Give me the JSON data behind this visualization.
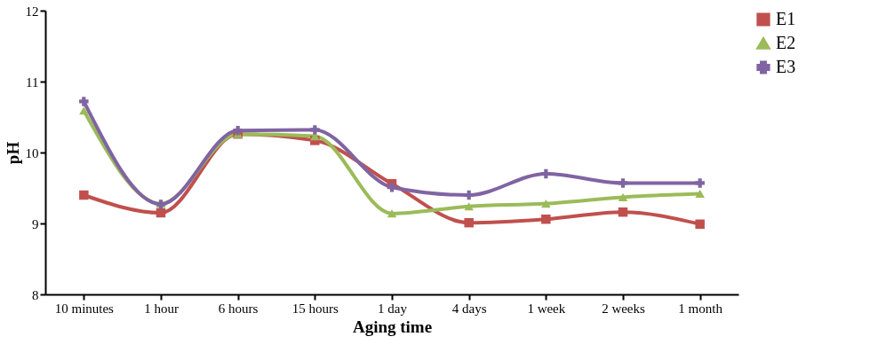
{
  "chart_data": {
    "type": "line",
    "xlabel": "Aging time",
    "ylabel": "pH",
    "categories": [
      "10 minutes",
      "1 hour",
      "6 hours",
      "15 hours",
      "1 day",
      "4 days",
      "1 week",
      "2 weeks",
      "1 month"
    ],
    "series": [
      {
        "name": "E1",
        "color": "#c0504d",
        "marker": "square",
        "values": [
          9.4,
          9.15,
          10.26,
          10.17,
          9.56,
          9.01,
          9.06,
          9.16,
          8.99
        ]
      },
      {
        "name": "E2",
        "color": "#9bbb59",
        "marker": "triangle",
        "values": [
          10.59,
          9.28,
          10.26,
          10.23,
          9.14,
          9.24,
          9.28,
          9.37,
          9.42
        ]
      },
      {
        "name": "E3",
        "color": "#8064a2",
        "marker": "cross",
        "values": [
          10.72,
          9.27,
          10.31,
          10.32,
          9.51,
          9.4,
          9.7,
          9.57,
          9.57
        ]
      }
    ],
    "ylim": [
      8,
      12
    ],
    "yticks": [
      8,
      9,
      10,
      11,
      12
    ],
    "grid": false,
    "legend": "right",
    "line_style": "solid"
  }
}
